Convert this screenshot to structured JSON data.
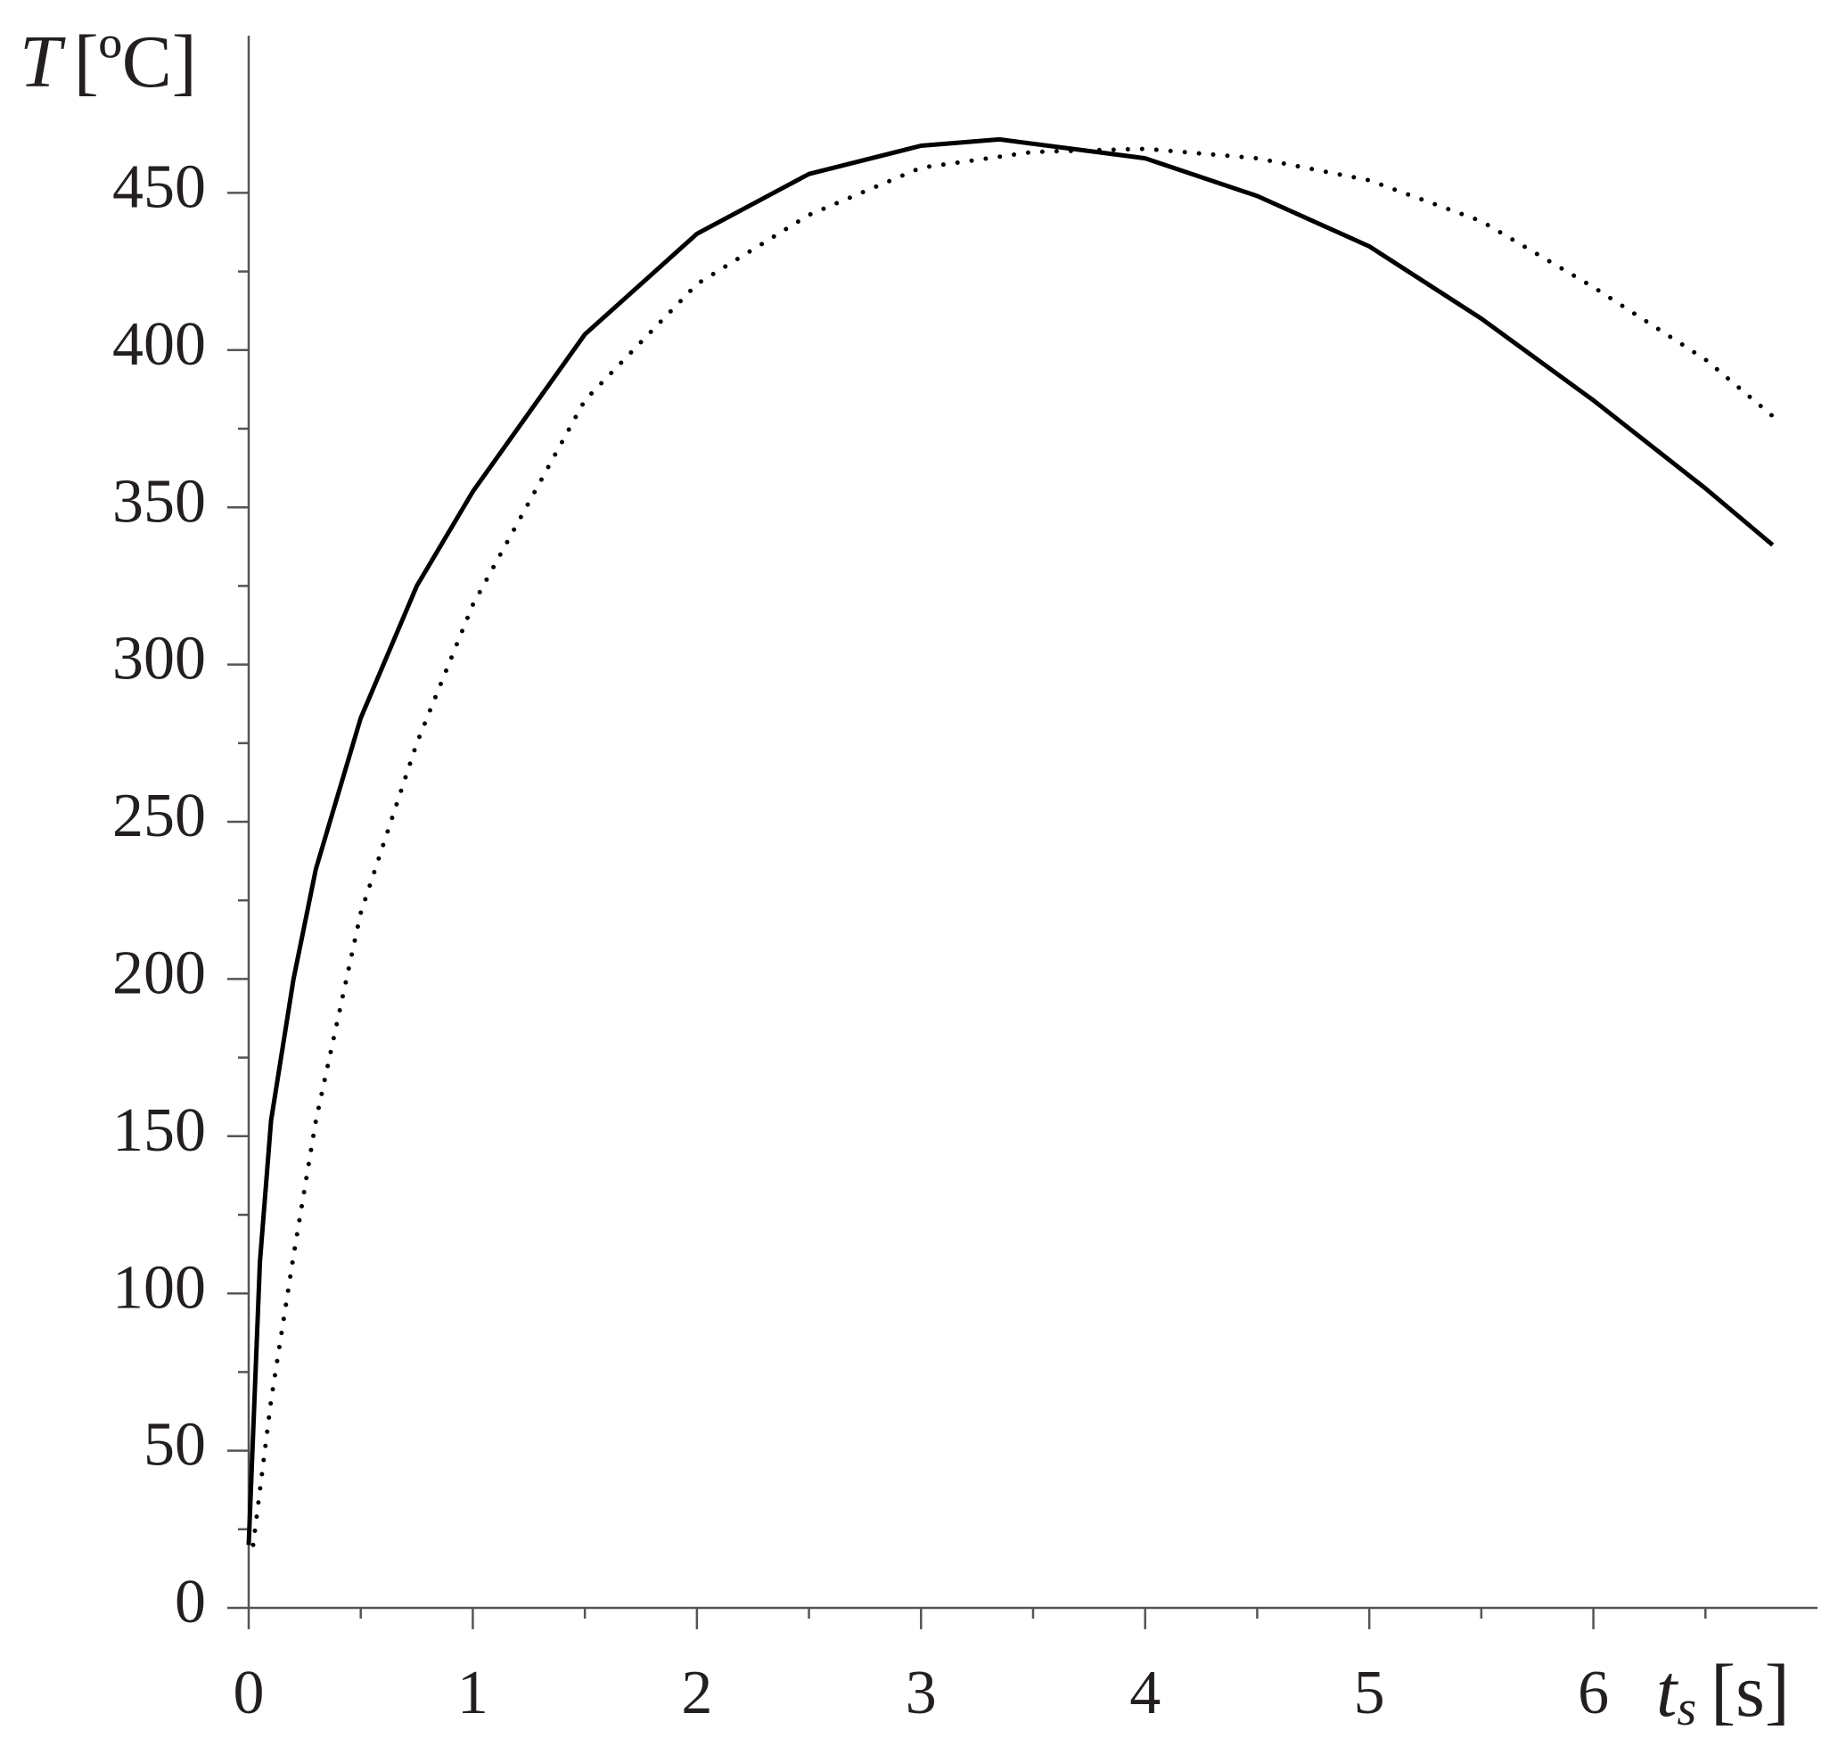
{
  "chart_data": {
    "type": "line",
    "y_label": {
      "symbol": "T",
      "unit": "[ºC]"
    },
    "x_label": {
      "symbol": "t",
      "subscript": "s",
      "unit": "[s]"
    },
    "xlim": [
      0,
      7
    ],
    "xticks": [
      0,
      1,
      2,
      3,
      4,
      5,
      6
    ],
    "ylim": [
      0,
      500
    ],
    "yticks": [
      0,
      50,
      100,
      150,
      200,
      250,
      300,
      350,
      400,
      450
    ],
    "series": [
      {
        "color": "#000000",
        "dash": "solid",
        "x": [
          0,
          0.05,
          0.1,
          0.2,
          0.3,
          0.5,
          0.75,
          1,
          1.5,
          2,
          2.5,
          3,
          3.35,
          4,
          4.5,
          5,
          5.5,
          6,
          6.5,
          6.8
        ],
        "values": [
          20,
          110,
          155,
          200,
          235,
          283,
          325,
          355,
          405,
          437,
          456,
          465,
          467,
          461,
          449,
          433,
          410,
          384,
          356,
          338
        ]
      },
      {
        "color": "#000000",
        "dash": "dotted",
        "x": [
          0.02,
          0.1,
          0.2,
          0.3,
          0.5,
          0.75,
          1,
          1.5,
          2,
          2.5,
          3,
          3.5,
          4,
          4.5,
          5,
          5.5,
          6,
          6.5,
          6.8
        ],
        "values": [
          20,
          66,
          112,
          155,
          221,
          275,
          319,
          384,
          421,
          443,
          458,
          463,
          464,
          461,
          454,
          441,
          420,
          397,
          379
        ]
      }
    ]
  }
}
